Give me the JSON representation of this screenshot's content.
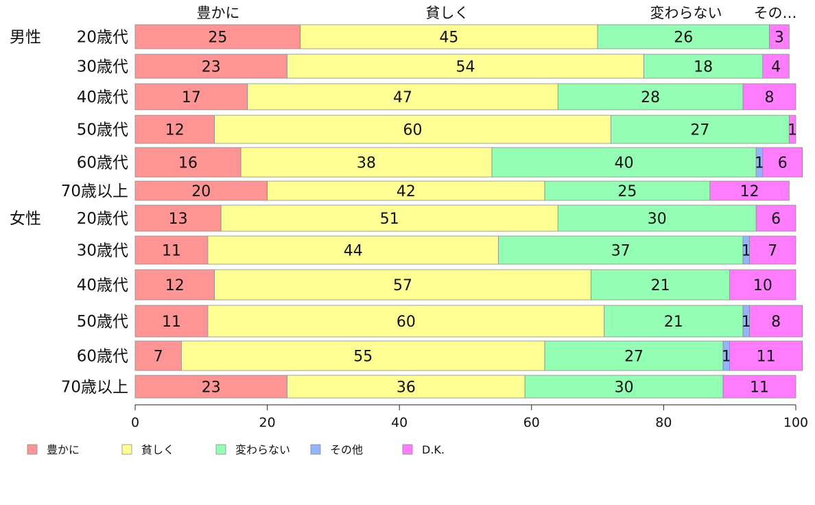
{
  "chart_data": {
    "type": "bar",
    "orientation": "horizontal",
    "stacked": true,
    "xlim": [
      0,
      100
    ],
    "x_ticks": [
      "0",
      "20",
      "40",
      "60",
      "80",
      "100"
    ],
    "grid": false,
    "legend_position": "bottom",
    "top_labels": [
      "豊かに",
      "貧しく",
      "変わらない",
      "その…"
    ],
    "groups": [
      {
        "label": "男性",
        "row_index": 0
      },
      {
        "label": "女性",
        "row_index": 6
      }
    ],
    "categories": [
      "20歳代",
      "30歳代",
      "40歳代",
      "50歳代",
      "60歳代",
      "70歳以上",
      "20歳代",
      "30歳代",
      "40歳代",
      "50歳代",
      "60歳代",
      "70歳以上"
    ],
    "series": [
      {
        "name": "豊かに",
        "color": "#ff9494",
        "values": [
          25,
          23,
          17,
          12,
          16,
          20,
          13,
          11,
          12,
          11,
          7,
          23
        ]
      },
      {
        "name": "貧しく",
        "color": "#ffff94",
        "values": [
          45,
          54,
          47,
          60,
          38,
          42,
          51,
          44,
          57,
          60,
          55,
          36
        ]
      },
      {
        "name": "変わらない",
        "color": "#94ffb4",
        "values": [
          26,
          18,
          28,
          27,
          40,
          25,
          30,
          37,
          21,
          21,
          27,
          30
        ]
      },
      {
        "name": "その他",
        "color": "#94b4ff",
        "values": [
          0,
          0,
          0,
          0,
          1,
          0,
          0,
          1,
          0,
          1,
          1,
          0
        ]
      },
      {
        "name": "D.K.",
        "color": "#ff7cff",
        "values": [
          3,
          4,
          8,
          1,
          6,
          12,
          6,
          7,
          10,
          8,
          11,
          11
        ]
      }
    ],
    "data_labels": [
      [
        "25",
        "45",
        "26",
        "",
        "3"
      ],
      [
        "23",
        "54",
        "18",
        "",
        "4"
      ],
      [
        "17",
        "47",
        "28",
        "",
        "8"
      ],
      [
        "12",
        "60",
        "27",
        "",
        "1"
      ],
      [
        "16",
        "38",
        "40",
        "1",
        "6"
      ],
      [
        "20",
        "42",
        "25",
        "",
        "12"
      ],
      [
        "13",
        "51",
        "30",
        "",
        "6"
      ],
      [
        "11",
        "44",
        "37",
        "1",
        "7"
      ],
      [
        "12",
        "57",
        "21",
        "",
        "10"
      ],
      [
        "11",
        "60",
        "21",
        "1",
        "8"
      ],
      [
        "7",
        "55",
        "27",
        "1",
        "11"
      ],
      [
        "23",
        "36",
        "30",
        "",
        "11"
      ]
    ]
  }
}
